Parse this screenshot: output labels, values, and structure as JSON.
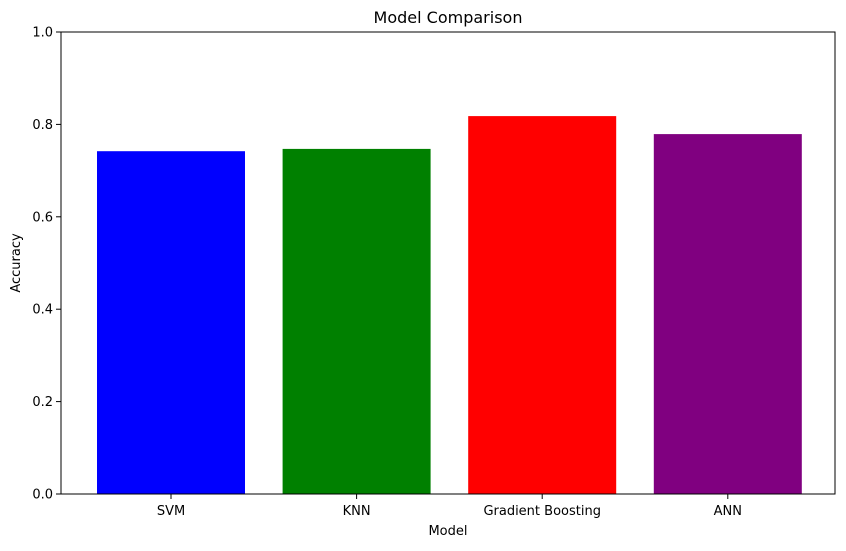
{
  "chart_data": {
    "type": "bar",
    "title": "Model Comparison",
    "xlabel": "Model",
    "ylabel": "Accuracy",
    "categories": [
      "SVM",
      "KNN",
      "Gradient Boosting",
      "ANN"
    ],
    "values": [
      0.742,
      0.747,
      0.818,
      0.779
    ],
    "colors": [
      "#0000ff",
      "#008000",
      "#ff0000",
      "#800080"
    ],
    "ylim": [
      0,
      1.0
    ],
    "yticks": [
      "0.0",
      "0.2",
      "0.4",
      "0.6",
      "0.8",
      "1.0"
    ],
    "grid": false,
    "legend": "none"
  }
}
